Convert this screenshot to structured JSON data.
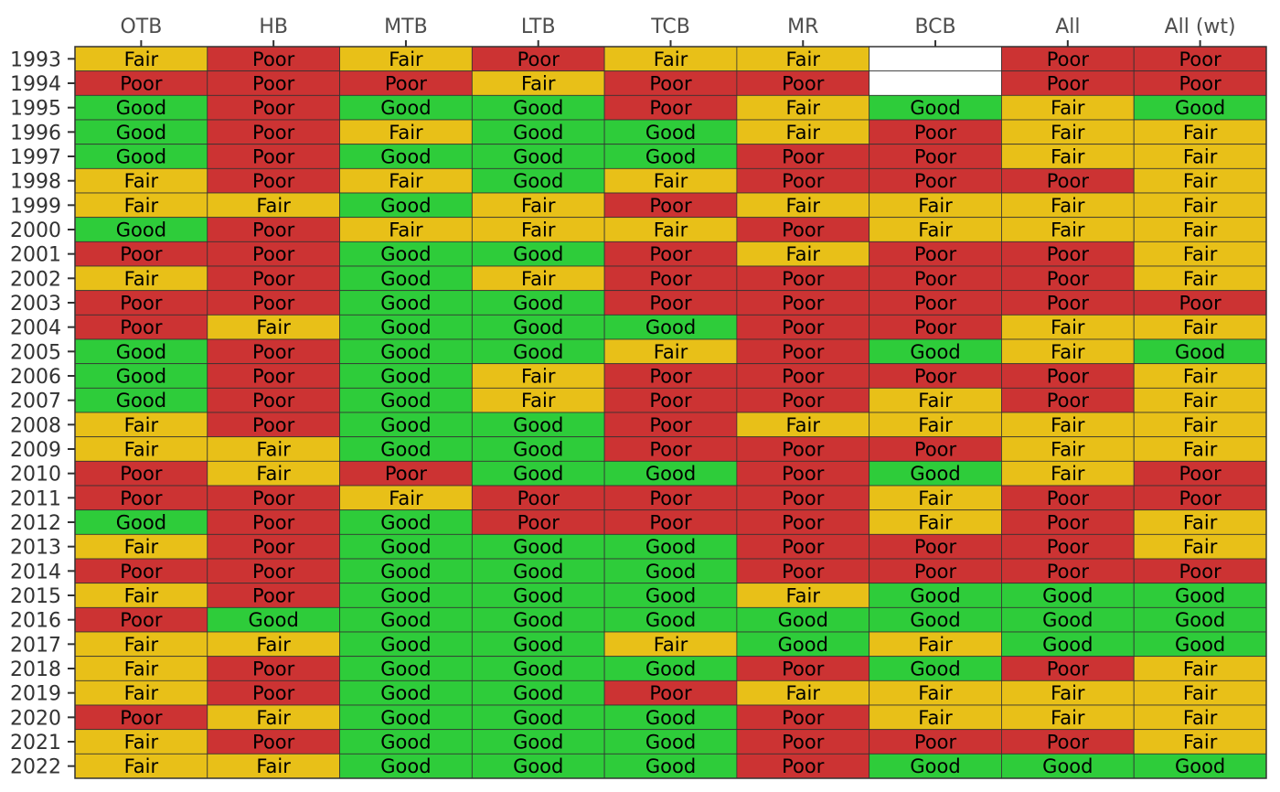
{
  "chart_data": {
    "type": "heatmap",
    "title": "",
    "xlabel": "",
    "ylabel": "",
    "columns": [
      "OTB",
      "HB",
      "MTB",
      "LTB",
      "TCB",
      "MR",
      "BCB",
      "All",
      "All (wt)"
    ],
    "rows": [
      "1993",
      "1994",
      "1995",
      "1996",
      "1997",
      "1998",
      "1999",
      "2000",
      "2001",
      "2002",
      "2003",
      "2004",
      "2005",
      "2006",
      "2007",
      "2008",
      "2009",
      "2010",
      "2011",
      "2012",
      "2013",
      "2014",
      "2015",
      "2016",
      "2017",
      "2018",
      "2019",
      "2020",
      "2021",
      "2022"
    ],
    "values": [
      [
        "Fair",
        "Poor",
        "Fair",
        "Poor",
        "Fair",
        "Fair",
        null,
        "Poor",
        "Poor"
      ],
      [
        "Poor",
        "Poor",
        "Poor",
        "Fair",
        "Poor",
        "Poor",
        null,
        "Poor",
        "Poor"
      ],
      [
        "Good",
        "Poor",
        "Good",
        "Good",
        "Poor",
        "Fair",
        "Good",
        "Fair",
        "Good"
      ],
      [
        "Good",
        "Poor",
        "Fair",
        "Good",
        "Good",
        "Fair",
        "Poor",
        "Fair",
        "Fair"
      ],
      [
        "Good",
        "Poor",
        "Good",
        "Good",
        "Good",
        "Poor",
        "Poor",
        "Fair",
        "Fair"
      ],
      [
        "Fair",
        "Poor",
        "Fair",
        "Good",
        "Fair",
        "Poor",
        "Poor",
        "Poor",
        "Fair"
      ],
      [
        "Fair",
        "Fair",
        "Good",
        "Fair",
        "Poor",
        "Fair",
        "Fair",
        "Fair",
        "Fair"
      ],
      [
        "Good",
        "Poor",
        "Fair",
        "Fair",
        "Fair",
        "Poor",
        "Fair",
        "Fair",
        "Fair"
      ],
      [
        "Poor",
        "Poor",
        "Good",
        "Good",
        "Poor",
        "Fair",
        "Poor",
        "Poor",
        "Fair"
      ],
      [
        "Fair",
        "Poor",
        "Good",
        "Fair",
        "Poor",
        "Poor",
        "Poor",
        "Poor",
        "Fair"
      ],
      [
        "Poor",
        "Poor",
        "Good",
        "Good",
        "Poor",
        "Poor",
        "Poor",
        "Poor",
        "Poor"
      ],
      [
        "Poor",
        "Fair",
        "Good",
        "Good",
        "Good",
        "Poor",
        "Poor",
        "Fair",
        "Fair"
      ],
      [
        "Good",
        "Poor",
        "Good",
        "Good",
        "Fair",
        "Poor",
        "Good",
        "Fair",
        "Good"
      ],
      [
        "Good",
        "Poor",
        "Good",
        "Fair",
        "Poor",
        "Poor",
        "Poor",
        "Poor",
        "Fair"
      ],
      [
        "Good",
        "Poor",
        "Good",
        "Fair",
        "Poor",
        "Poor",
        "Fair",
        "Poor",
        "Fair"
      ],
      [
        "Fair",
        "Poor",
        "Good",
        "Good",
        "Poor",
        "Fair",
        "Fair",
        "Fair",
        "Fair"
      ],
      [
        "Fair",
        "Fair",
        "Good",
        "Good",
        "Poor",
        "Poor",
        "Poor",
        "Fair",
        "Fair"
      ],
      [
        "Poor",
        "Fair",
        "Poor",
        "Good",
        "Good",
        "Poor",
        "Good",
        "Fair",
        "Poor"
      ],
      [
        "Poor",
        "Poor",
        "Fair",
        "Poor",
        "Poor",
        "Poor",
        "Fair",
        "Poor",
        "Poor"
      ],
      [
        "Good",
        "Poor",
        "Good",
        "Poor",
        "Poor",
        "Poor",
        "Fair",
        "Poor",
        "Fair"
      ],
      [
        "Fair",
        "Poor",
        "Good",
        "Good",
        "Good",
        "Poor",
        "Poor",
        "Poor",
        "Fair"
      ],
      [
        "Poor",
        "Poor",
        "Good",
        "Good",
        "Good",
        "Poor",
        "Poor",
        "Poor",
        "Poor"
      ],
      [
        "Fair",
        "Poor",
        "Good",
        "Good",
        "Good",
        "Fair",
        "Good",
        "Good",
        "Good"
      ],
      [
        "Poor",
        "Good",
        "Good",
        "Good",
        "Good",
        "Good",
        "Good",
        "Good",
        "Good"
      ],
      [
        "Fair",
        "Fair",
        "Good",
        "Good",
        "Fair",
        "Good",
        "Fair",
        "Good",
        "Good"
      ],
      [
        "Fair",
        "Poor",
        "Good",
        "Good",
        "Good",
        "Poor",
        "Good",
        "Poor",
        "Fair"
      ],
      [
        "Fair",
        "Poor",
        "Good",
        "Good",
        "Poor",
        "Fair",
        "Fair",
        "Fair",
        "Fair"
      ],
      [
        "Poor",
        "Fair",
        "Good",
        "Good",
        "Good",
        "Poor",
        "Fair",
        "Fair",
        "Fair"
      ],
      [
        "Fair",
        "Poor",
        "Good",
        "Good",
        "Good",
        "Poor",
        "Poor",
        "Poor",
        "Fair"
      ],
      [
        "Fair",
        "Fair",
        "Good",
        "Good",
        "Good",
        "Poor",
        "Good",
        "Good",
        "Good"
      ]
    ],
    "colors": {
      "Good": "#2ecc3a",
      "Fair": "#e8c018",
      "Poor": "#cc3333",
      "missing": "#ffffff"
    },
    "grid": false,
    "legend": "none"
  }
}
